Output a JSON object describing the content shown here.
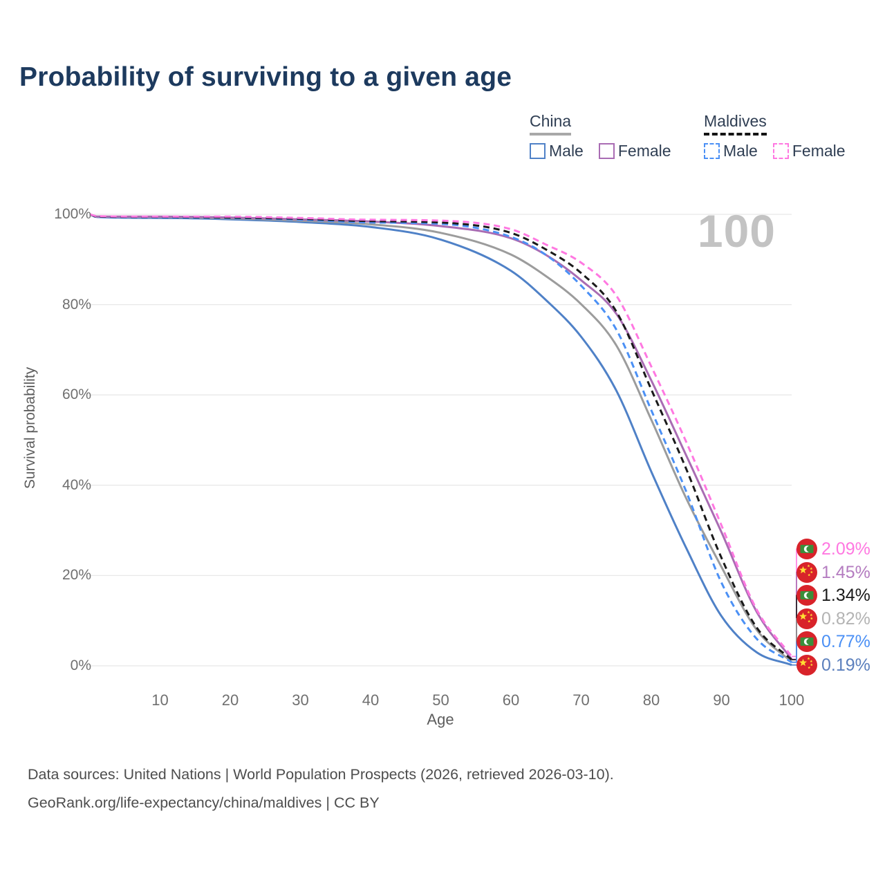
{
  "page": {
    "background": "#ffffff"
  },
  "title": "Probability of surviving to a given age",
  "highlight": {
    "age_label": "100"
  },
  "axes": {
    "y": {
      "label": "Survival probability",
      "ticks": [
        {
          "label": "100%",
          "value": 100
        },
        {
          "label": "80%",
          "value": 80
        },
        {
          "label": "60%",
          "value": 60
        },
        {
          "label": "40%",
          "value": 40
        },
        {
          "label": "20%",
          "value": 20
        },
        {
          "label": "0%",
          "value": 0
        }
      ]
    },
    "x": {
      "label": "Age",
      "ticks": [
        10,
        20,
        30,
        40,
        50,
        60,
        70,
        80,
        90,
        100
      ]
    }
  },
  "legend": {
    "groups": [
      {
        "title": "China",
        "underline_style": "solid",
        "underline_color": "#a8a8a8",
        "items": [
          {
            "label": "Male",
            "swatch_style": "solid",
            "swatch_color": "#4f81c7"
          },
          {
            "label": "Female",
            "swatch_style": "solid",
            "swatch_color": "#a96cb3"
          }
        ]
      },
      {
        "title": "Maldives",
        "underline_style": "dashed",
        "underline_color": "#141414",
        "items": [
          {
            "label": "Male",
            "swatch_style": "dashed",
            "swatch_color": "#4b90f5"
          },
          {
            "label": "Female",
            "swatch_style": "dashed",
            "swatch_color": "#ff78e1"
          }
        ]
      }
    ]
  },
  "chart_data": {
    "type": "line",
    "title": "Probability of surviving to a given age",
    "xlabel": "Age",
    "ylabel": "Survival probability",
    "xlim": [
      0,
      100
    ],
    "ylim": [
      0,
      100
    ],
    "grid": "horizontal",
    "legend_position": "top-right",
    "x": [
      0,
      1,
      10,
      20,
      30,
      40,
      50,
      60,
      65,
      70,
      75,
      80,
      85,
      90,
      95,
      100
    ],
    "series": [
      {
        "id": "china_male",
        "name": "China Male",
        "country": "China",
        "sex": "Male",
        "style": "solid",
        "color": "#4f81c7",
        "values": [
          100,
          99.4,
          99.2,
          98.9,
          98.3,
          97.2,
          94.4,
          87.5,
          81.0,
          72.9,
          61.0,
          43.0,
          26.0,
          11.0,
          3.0,
          0.19
        ]
      },
      {
        "id": "china_both",
        "name": "China Both sexes",
        "country": "China",
        "sex": "Both",
        "style": "solid",
        "color": "#9c9c9c",
        "values": [
          100,
          99.5,
          99.4,
          99.1,
          98.6,
          97.8,
          95.9,
          91.1,
          86.3,
          80.1,
          71.0,
          54.5,
          37.0,
          21.9,
          8.0,
          0.82
        ]
      },
      {
        "id": "china_female",
        "name": "China Female",
        "country": "China",
        "sex": "Female",
        "style": "solid",
        "color": "#a96cb3",
        "values": [
          100,
          99.5,
          99.5,
          99.3,
          98.9,
          98.4,
          97.4,
          94.7,
          91.0,
          85.4,
          78.0,
          63.2,
          46.5,
          29.6,
          12.0,
          1.45
        ]
      },
      {
        "id": "maldives_male",
        "name": "Maldives Male",
        "country": "Maldives",
        "sex": "Male",
        "style": "dashed",
        "color": "#4b90f5",
        "values": [
          100,
          99.4,
          99.3,
          99.2,
          98.8,
          98.2,
          97.9,
          95.0,
          91.0,
          84.2,
          74.5,
          56.6,
          38.5,
          18.4,
          6.0,
          0.77
        ]
      },
      {
        "id": "maldives_both",
        "name": "Maldives Both sexes",
        "country": "Maldives",
        "sex": "Both",
        "style": "dashed",
        "color": "#1a1a1a",
        "values": [
          100,
          99.5,
          99.4,
          99.3,
          99.0,
          98.5,
          98.2,
          95.9,
          92.2,
          87.0,
          78.5,
          61.2,
          43.5,
          23.9,
          8.5,
          1.34
        ]
      },
      {
        "id": "maldives_female",
        "name": "Maldives Female",
        "country": "Maldives",
        "sex": "Female",
        "style": "dashed",
        "color": "#ff78e1",
        "values": [
          100,
          99.6,
          99.5,
          99.5,
          99.2,
          98.8,
          98.6,
          96.7,
          93.3,
          89.3,
          82.0,
          66.3,
          49.5,
          31.1,
          12.5,
          2.09
        ]
      }
    ],
    "end_labels": [
      {
        "series": "maldives_female",
        "text": "2.09%",
        "color": "#ff78e1",
        "flag": "maldives"
      },
      {
        "series": "china_female",
        "text": "1.45%",
        "color": "#b47cc0",
        "flag": "china"
      },
      {
        "series": "maldives_both",
        "text": "1.34%",
        "color": "#1a1a1a",
        "flag": "maldives"
      },
      {
        "series": "china_both",
        "text": "0.82%",
        "color": "#b3b3b3",
        "flag": "china"
      },
      {
        "series": "maldives_male",
        "text": "0.77%",
        "color": "#4b90f5",
        "flag": "maldives"
      },
      {
        "series": "china_male",
        "text": "0.19%",
        "color": "#5c80bd",
        "flag": "china"
      }
    ]
  },
  "flag_colors": {
    "red": "#d8232a",
    "china_star_yellow": "#ffde33",
    "maldives_green": "#3a8e3a",
    "maldives_crescent": "#ffffff"
  },
  "footer": {
    "line1": "Data sources: United Nations | World Population Prospects (2026, retrieved 2026-03-10).",
    "line2": "GeoRank.org/life-expectancy/china/maldives | CC BY"
  }
}
